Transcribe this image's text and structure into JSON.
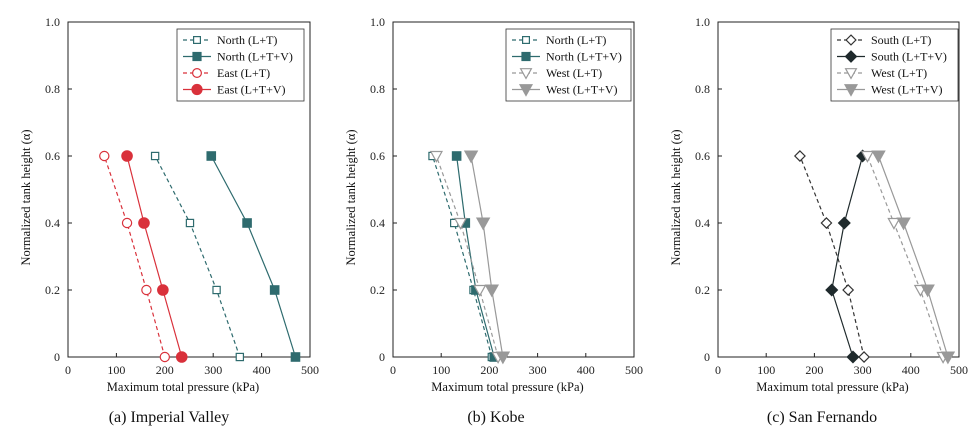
{
  "chart_data": [
    {
      "type": "line",
      "caption": "(a) Imperial Valley",
      "xlabel": "Maximum total pressure (kPa)",
      "ylabel": "Normalized tank height (α)",
      "xlim": [
        0,
        500
      ],
      "ylim": [
        0,
        1.0
      ],
      "xticks": [
        "0",
        "100",
        "200",
        "300",
        "400",
        "500"
      ],
      "yticks": [
        "0",
        "0.2",
        "0.4",
        "0.6",
        "0.8",
        "1.0"
      ],
      "legend_position": "top-right",
      "series": [
        {
          "name": "North (L+T)",
          "color": "#2e6b6e",
          "dashed": true,
          "marker": "square",
          "filled": false,
          "x": [
            355,
            307,
            252,
            180
          ],
          "y": [
            0,
            0.2,
            0.4,
            0.6
          ]
        },
        {
          "name": "North (L+T+V)",
          "color": "#2e6b6e",
          "dashed": false,
          "marker": "square",
          "filled": true,
          "x": [
            470,
            427,
            370,
            296
          ],
          "y": [
            0,
            0.2,
            0.4,
            0.6
          ]
        },
        {
          "name": "East (L+T)",
          "color": "#d9313b",
          "dashed": true,
          "marker": "circle",
          "filled": false,
          "x": [
            200,
            162,
            122,
            75
          ],
          "y": [
            0,
            0.2,
            0.4,
            0.6
          ]
        },
        {
          "name": "East (L+T+V)",
          "color": "#d9313b",
          "dashed": false,
          "marker": "circle",
          "filled": true,
          "x": [
            235,
            196,
            157,
            122
          ],
          "y": [
            0,
            0.2,
            0.4,
            0.6
          ]
        }
      ]
    },
    {
      "type": "line",
      "caption": "(b) Kobe",
      "xlabel": "Maximum total pressure (kPa)",
      "ylabel": "Normalized tank height (α)",
      "xlim": [
        0,
        500
      ],
      "ylim": [
        0,
        1.0
      ],
      "xticks": [
        "0",
        "100",
        "200",
        "300",
        "400",
        "500"
      ],
      "yticks": [
        "0",
        "0.2",
        "0.4",
        "0.6",
        "0.8",
        "1.0"
      ],
      "legend_position": "top-right",
      "series": [
        {
          "name": "North (L+T)",
          "color": "#2e6b6e",
          "dashed": true,
          "marker": "square",
          "filled": false,
          "x": [
            205,
            167,
            127,
            82
          ],
          "y": [
            0,
            0.2,
            0.4,
            0.6
          ]
        },
        {
          "name": "North (L+T+V)",
          "color": "#2e6b6e",
          "dashed": false,
          "marker": "square",
          "filled": true,
          "x": [
            210,
            172,
            150,
            132
          ],
          "y": [
            0,
            0.2,
            0.4,
            0.6
          ]
        },
        {
          "name": "West (L+T)",
          "color": "#999999",
          "dashed": true,
          "marker": "triangle-down",
          "filled": false,
          "x": [
            218,
            180,
            140,
            90
          ],
          "y": [
            0,
            0.2,
            0.4,
            0.6
          ]
        },
        {
          "name": "West (L+T+V)",
          "color": "#999999",
          "dashed": false,
          "marker": "triangle-down",
          "filled": true,
          "x": [
            228,
            205,
            187,
            162
          ],
          "y": [
            0,
            0.2,
            0.4,
            0.6
          ]
        }
      ]
    },
    {
      "type": "line",
      "caption": "(c) San Fernando",
      "xlabel": "Maximum total pressure (kPa)",
      "ylabel": "Normalized tank height (α)",
      "xlim": [
        0,
        500
      ],
      "ylim": [
        0,
        1.0
      ],
      "xticks": [
        "0",
        "100",
        "200",
        "300",
        "400",
        "500"
      ],
      "yticks": [
        "0",
        "0.2",
        "0.4",
        "0.6",
        "0.8",
        "1.0"
      ],
      "legend_position": "top-right",
      "series": [
        {
          "name": "South (L+T)",
          "color": "#333333",
          "dashed": true,
          "marker": "diamond",
          "filled": false,
          "x": [
            303,
            270,
            225,
            170
          ],
          "y": [
            0,
            0.2,
            0.4,
            0.6
          ]
        },
        {
          "name": "South (L+T+V)",
          "color": "#1f2a2c",
          "dashed": false,
          "marker": "diamond",
          "filled": true,
          "x": [
            280,
            236,
            262,
            300
          ],
          "y": [
            0,
            0.2,
            0.4,
            0.6
          ]
        },
        {
          "name": "West (L+T)",
          "color": "#999999",
          "dashed": true,
          "marker": "triangle-down",
          "filled": false,
          "x": [
            467,
            420,
            365,
            310
          ],
          "y": [
            0,
            0.2,
            0.4,
            0.6
          ]
        },
        {
          "name": "West (L+T+V)",
          "color": "#999999",
          "dashed": false,
          "marker": "triangle-down",
          "filled": true,
          "x": [
            477,
            435,
            385,
            333
          ],
          "y": [
            0,
            0.2,
            0.4,
            0.6
          ]
        }
      ]
    }
  ]
}
